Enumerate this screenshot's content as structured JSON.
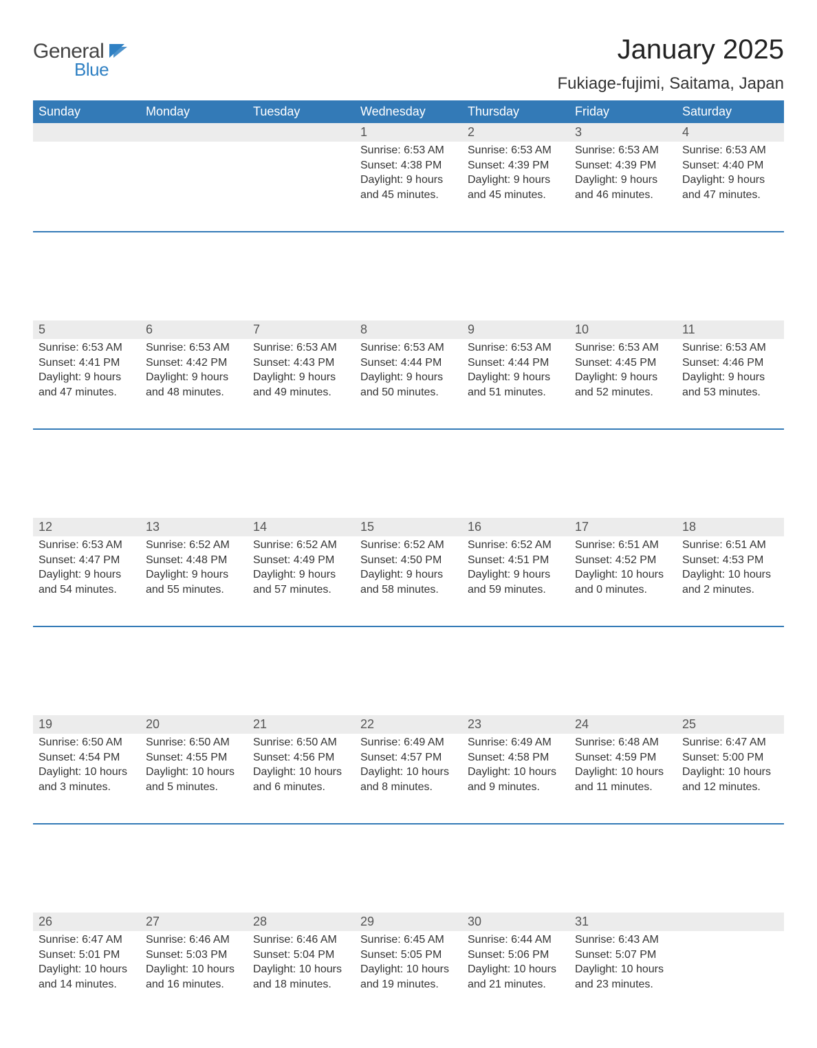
{
  "logo": {
    "text1": "General",
    "text2": "Blue",
    "flag_color": "#2f80c3",
    "text1_color": "#444444",
    "text2_color": "#2f80c3"
  },
  "title": "January 2025",
  "location": "Fukiage-fujimi, Saitama, Japan",
  "colors": {
    "header_bg": "#337ab7",
    "header_text": "#ffffff",
    "daynum_bg": "#ececec",
    "daynum_text": "#555555",
    "body_text": "#333333",
    "row_separator": "#337ab7",
    "page_bg": "#ffffff"
  },
  "fonts": {
    "header_size": 18,
    "daynum_size": 18,
    "body_size": 16,
    "title_size": 40,
    "location_size": 24
  },
  "weekdays": [
    "Sunday",
    "Monday",
    "Tuesday",
    "Wednesday",
    "Thursday",
    "Friday",
    "Saturday"
  ],
  "weeks": [
    [
      null,
      null,
      null,
      {
        "n": "1",
        "sunrise": "Sunrise: 6:53 AM",
        "sunset": "Sunset: 4:38 PM",
        "daylight": "Daylight: 9 hours and 45 minutes."
      },
      {
        "n": "2",
        "sunrise": "Sunrise: 6:53 AM",
        "sunset": "Sunset: 4:39 PM",
        "daylight": "Daylight: 9 hours and 45 minutes."
      },
      {
        "n": "3",
        "sunrise": "Sunrise: 6:53 AM",
        "sunset": "Sunset: 4:39 PM",
        "daylight": "Daylight: 9 hours and 46 minutes."
      },
      {
        "n": "4",
        "sunrise": "Sunrise: 6:53 AM",
        "sunset": "Sunset: 4:40 PM",
        "daylight": "Daylight: 9 hours and 47 minutes."
      }
    ],
    [
      {
        "n": "5",
        "sunrise": "Sunrise: 6:53 AM",
        "sunset": "Sunset: 4:41 PM",
        "daylight": "Daylight: 9 hours and 47 minutes."
      },
      {
        "n": "6",
        "sunrise": "Sunrise: 6:53 AM",
        "sunset": "Sunset: 4:42 PM",
        "daylight": "Daylight: 9 hours and 48 minutes."
      },
      {
        "n": "7",
        "sunrise": "Sunrise: 6:53 AM",
        "sunset": "Sunset: 4:43 PM",
        "daylight": "Daylight: 9 hours and 49 minutes."
      },
      {
        "n": "8",
        "sunrise": "Sunrise: 6:53 AM",
        "sunset": "Sunset: 4:44 PM",
        "daylight": "Daylight: 9 hours and 50 minutes."
      },
      {
        "n": "9",
        "sunrise": "Sunrise: 6:53 AM",
        "sunset": "Sunset: 4:44 PM",
        "daylight": "Daylight: 9 hours and 51 minutes."
      },
      {
        "n": "10",
        "sunrise": "Sunrise: 6:53 AM",
        "sunset": "Sunset: 4:45 PM",
        "daylight": "Daylight: 9 hours and 52 minutes."
      },
      {
        "n": "11",
        "sunrise": "Sunrise: 6:53 AM",
        "sunset": "Sunset: 4:46 PM",
        "daylight": "Daylight: 9 hours and 53 minutes."
      }
    ],
    [
      {
        "n": "12",
        "sunrise": "Sunrise: 6:53 AM",
        "sunset": "Sunset: 4:47 PM",
        "daylight": "Daylight: 9 hours and 54 minutes."
      },
      {
        "n": "13",
        "sunrise": "Sunrise: 6:52 AM",
        "sunset": "Sunset: 4:48 PM",
        "daylight": "Daylight: 9 hours and 55 minutes."
      },
      {
        "n": "14",
        "sunrise": "Sunrise: 6:52 AM",
        "sunset": "Sunset: 4:49 PM",
        "daylight": "Daylight: 9 hours and 57 minutes."
      },
      {
        "n": "15",
        "sunrise": "Sunrise: 6:52 AM",
        "sunset": "Sunset: 4:50 PM",
        "daylight": "Daylight: 9 hours and 58 minutes."
      },
      {
        "n": "16",
        "sunrise": "Sunrise: 6:52 AM",
        "sunset": "Sunset: 4:51 PM",
        "daylight": "Daylight: 9 hours and 59 minutes."
      },
      {
        "n": "17",
        "sunrise": "Sunrise: 6:51 AM",
        "sunset": "Sunset: 4:52 PM",
        "daylight": "Daylight: 10 hours and 0 minutes."
      },
      {
        "n": "18",
        "sunrise": "Sunrise: 6:51 AM",
        "sunset": "Sunset: 4:53 PM",
        "daylight": "Daylight: 10 hours and 2 minutes."
      }
    ],
    [
      {
        "n": "19",
        "sunrise": "Sunrise: 6:50 AM",
        "sunset": "Sunset: 4:54 PM",
        "daylight": "Daylight: 10 hours and 3 minutes."
      },
      {
        "n": "20",
        "sunrise": "Sunrise: 6:50 AM",
        "sunset": "Sunset: 4:55 PM",
        "daylight": "Daylight: 10 hours and 5 minutes."
      },
      {
        "n": "21",
        "sunrise": "Sunrise: 6:50 AM",
        "sunset": "Sunset: 4:56 PM",
        "daylight": "Daylight: 10 hours and 6 minutes."
      },
      {
        "n": "22",
        "sunrise": "Sunrise: 6:49 AM",
        "sunset": "Sunset: 4:57 PM",
        "daylight": "Daylight: 10 hours and 8 minutes."
      },
      {
        "n": "23",
        "sunrise": "Sunrise: 6:49 AM",
        "sunset": "Sunset: 4:58 PM",
        "daylight": "Daylight: 10 hours and 9 minutes."
      },
      {
        "n": "24",
        "sunrise": "Sunrise: 6:48 AM",
        "sunset": "Sunset: 4:59 PM",
        "daylight": "Daylight: 10 hours and 11 minutes."
      },
      {
        "n": "25",
        "sunrise": "Sunrise: 6:47 AM",
        "sunset": "Sunset: 5:00 PM",
        "daylight": "Daylight: 10 hours and 12 minutes."
      }
    ],
    [
      {
        "n": "26",
        "sunrise": "Sunrise: 6:47 AM",
        "sunset": "Sunset: 5:01 PM",
        "daylight": "Daylight: 10 hours and 14 minutes."
      },
      {
        "n": "27",
        "sunrise": "Sunrise: 6:46 AM",
        "sunset": "Sunset: 5:03 PM",
        "daylight": "Daylight: 10 hours and 16 minutes."
      },
      {
        "n": "28",
        "sunrise": "Sunrise: 6:46 AM",
        "sunset": "Sunset: 5:04 PM",
        "daylight": "Daylight: 10 hours and 18 minutes."
      },
      {
        "n": "29",
        "sunrise": "Sunrise: 6:45 AM",
        "sunset": "Sunset: 5:05 PM",
        "daylight": "Daylight: 10 hours and 19 minutes."
      },
      {
        "n": "30",
        "sunrise": "Sunrise: 6:44 AM",
        "sunset": "Sunset: 5:06 PM",
        "daylight": "Daylight: 10 hours and 21 minutes."
      },
      {
        "n": "31",
        "sunrise": "Sunrise: 6:43 AM",
        "sunset": "Sunset: 5:07 PM",
        "daylight": "Daylight: 10 hours and 23 minutes."
      },
      null
    ]
  ]
}
